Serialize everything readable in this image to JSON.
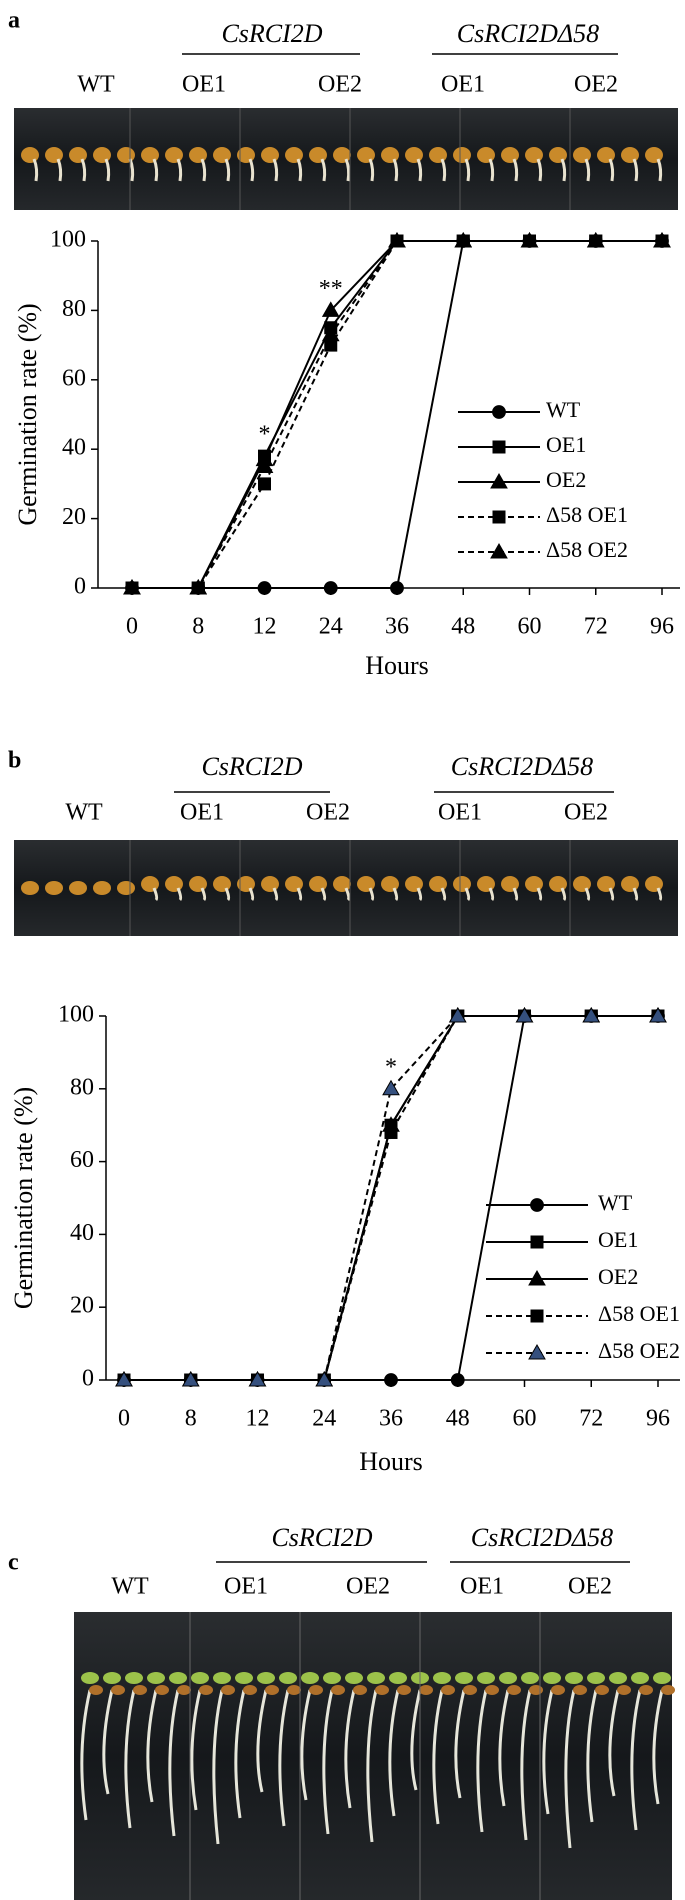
{
  "panels": [
    {
      "label": "a",
      "wt": "WT",
      "groups": [
        {
          "name": "CsRCI2D",
          "lines": [
            "OE1",
            "OE2"
          ]
        },
        {
          "name": "CsRCI2DΔ58",
          "lines": [
            "OE1",
            "OE2"
          ]
        }
      ]
    },
    {
      "label": "b",
      "wt": "WT",
      "groups": [
        {
          "name": "CsRCI2D",
          "lines": [
            "OE1",
            "OE2"
          ]
        },
        {
          "name": "CsRCI2DΔ58",
          "lines": [
            "OE1",
            "OE2"
          ]
        }
      ]
    },
    {
      "label": "c",
      "wt": "WT",
      "groups": [
        {
          "name": "CsRCI2D",
          "lines": [
            "OE1",
            "OE2"
          ]
        },
        {
          "name": "CsRCI2DΔ58",
          "lines": [
            "OE1",
            "OE2"
          ]
        }
      ]
    }
  ],
  "chart_data": [
    {
      "type": "line",
      "x_label": "Hours",
      "y_label": "Germination rate (%)",
      "categories": [
        "0",
        "8",
        "12",
        "24",
        "36",
        "48",
        "60",
        "72",
        "96"
      ],
      "ylim": [
        0,
        100
      ],
      "yticks": [
        0,
        20,
        40,
        60,
        80,
        100
      ],
      "series": [
        {
          "name": "WT",
          "color": "#000000",
          "marker": "circle",
          "marker_color": "#000000",
          "dashed": false,
          "values": [
            0,
            0,
            0,
            0,
            0,
            100,
            100,
            100,
            100
          ]
        },
        {
          "name": "OE1",
          "color": "#000000",
          "marker": "square",
          "marker_color": "#000000",
          "dashed": false,
          "values": [
            0,
            0,
            38,
            75,
            100,
            100,
            100,
            100,
            100
          ]
        },
        {
          "name": "OE2",
          "color": "#000000",
          "marker": "triangle",
          "marker_color": "#000000",
          "dashed": false,
          "values": [
            0,
            0,
            37,
            80,
            100,
            100,
            100,
            100,
            100
          ]
        },
        {
          "name": "Δ58 OE1",
          "color": "#000000",
          "marker": "square",
          "marker_color": "#000000",
          "dashed": true,
          "values": [
            0,
            0,
            30,
            70,
            100,
            100,
            100,
            100,
            100
          ]
        },
        {
          "name": "Δ58 OE2",
          "color": "#000000",
          "marker": "triangle",
          "marker_color": "#000000",
          "dashed": true,
          "values": [
            0,
            0,
            35,
            73,
            100,
            100,
            100,
            100,
            100
          ]
        }
      ],
      "annotations": [
        {
          "text": "*",
          "x": "12"
        },
        {
          "text": "**",
          "x": "24"
        }
      ]
    },
    {
      "type": "line",
      "x_label": "Hours",
      "y_label": "Germination rate (%)",
      "categories": [
        "0",
        "8",
        "12",
        "24",
        "36",
        "48",
        "60",
        "72",
        "96"
      ],
      "ylim": [
        0,
        100
      ],
      "yticks": [
        0,
        20,
        40,
        60,
        80,
        100
      ],
      "series": [
        {
          "name": "WT",
          "color": "#000000",
          "marker": "circle",
          "marker_color": "#000000",
          "dashed": false,
          "values": [
            0,
            0,
            0,
            0,
            0,
            0,
            100,
            100,
            100
          ]
        },
        {
          "name": "OE1",
          "color": "#000000",
          "marker": "square",
          "marker_color": "#000000",
          "dashed": false,
          "values": [
            0,
            0,
            0,
            0,
            70,
            100,
            100,
            100,
            100
          ]
        },
        {
          "name": "OE2",
          "color": "#000000",
          "marker": "triangle",
          "marker_color": "#000000",
          "dashed": false,
          "values": [
            0,
            0,
            0,
            0,
            70,
            100,
            100,
            100,
            100
          ]
        },
        {
          "name": "Δ58 OE1",
          "color": "#000000",
          "marker": "square",
          "marker_color": "#000000",
          "dashed": true,
          "values": [
            0,
            0,
            0,
            0,
            68,
            100,
            100,
            100,
            100
          ]
        },
        {
          "name": "Δ58 OE2",
          "color": "#000000",
          "marker": "triangle",
          "marker_color": "#35507e",
          "dashed": true,
          "values": [
            0,
            0,
            0,
            0,
            80,
            100,
            100,
            100,
            100
          ]
        }
      ],
      "annotations": [
        {
          "text": "*",
          "x": "36"
        }
      ]
    }
  ]
}
